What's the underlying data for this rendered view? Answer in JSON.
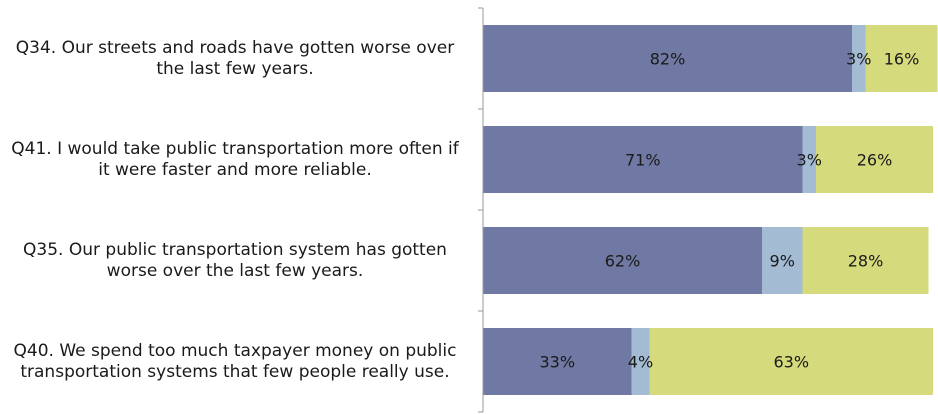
{
  "colors": {
    "agree": "#7079a3",
    "unsure": "#a3bbd3",
    "disagree": "#d5da7c",
    "axis": "#9a9a9a",
    "text": "#1a1a1a"
  },
  "chart_data": {
    "type": "bar",
    "orientation": "horizontal",
    "stacked": true,
    "categories": [
      "Q34. Our streets and roads have gotten worse over the last few years.",
      "Q41. I would take public transportation more often if it were faster and more reliable.",
      "Q35. Our public transportation system has gotten worse over the last few years.",
      "Q40. We spend too much taxpayer money on public transportation systems that few people really use."
    ],
    "series": [
      {
        "values": [
          82,
          71,
          62,
          33
        ],
        "labels": [
          "82%",
          "71%",
          "62%",
          "33%"
        ]
      },
      {
        "values": [
          3,
          3,
          9,
          4
        ],
        "labels": [
          "3%",
          "3%",
          "9%",
          "4%"
        ]
      },
      {
        "values": [
          16,
          26,
          28,
          63
        ],
        "labels": [
          "16%",
          "26%",
          "28%",
          "63%"
        ]
      }
    ],
    "xlim": [
      0,
      100
    ],
    "grid": false,
    "legend": "none"
  }
}
